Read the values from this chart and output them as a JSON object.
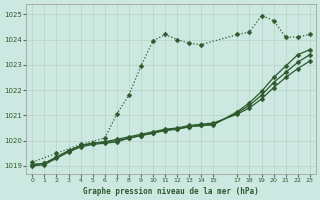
{
  "bg_color": "#cce8e0",
  "grid_color": "#b0d4cc",
  "line_color": "#2d5a2d",
  "title": "Graphe pression niveau de la mer (hPa)",
  "xlim": [
    -0.5,
    23.5
  ],
  "ylim": [
    1018.7,
    1025.4
  ],
  "yticks": [
    1019,
    1020,
    1021,
    1022,
    1023,
    1024,
    1025
  ],
  "xticks": [
    0,
    1,
    2,
    3,
    4,
    5,
    6,
    7,
    8,
    9,
    10,
    11,
    12,
    13,
    14,
    15,
    17,
    18,
    19,
    20,
    21,
    22,
    23
  ],
  "line_dotted": {
    "x": [
      0,
      2,
      4,
      6,
      7,
      8,
      9,
      10,
      11,
      12,
      13,
      14,
      17,
      18,
      19,
      20,
      21,
      22,
      23
    ],
    "y": [
      1019.15,
      1019.5,
      1019.85,
      1020.1,
      1021.05,
      1021.8,
      1022.95,
      1023.95,
      1024.2,
      1024.0,
      1023.85,
      1023.8,
      1024.2,
      1024.3,
      1024.95,
      1024.75,
      1024.1,
      1024.1,
      1024.2
    ]
  },
  "line_solid1": {
    "x": [
      0,
      1,
      2,
      3,
      4,
      5,
      6,
      7,
      8,
      9,
      10,
      11,
      12,
      13,
      14,
      15,
      17,
      18,
      19,
      20,
      21,
      22,
      23
    ],
    "y": [
      1019.05,
      1019.1,
      1019.35,
      1019.6,
      1019.8,
      1019.9,
      1019.95,
      1020.05,
      1020.15,
      1020.25,
      1020.35,
      1020.45,
      1020.5,
      1020.6,
      1020.65,
      1020.7,
      1021.05,
      1021.3,
      1021.65,
      1022.1,
      1022.5,
      1022.85,
      1023.15
    ]
  },
  "line_solid2": {
    "x": [
      0,
      1,
      2,
      3,
      4,
      5,
      6,
      7,
      8,
      9,
      10,
      11,
      12,
      13,
      14,
      15,
      17,
      18,
      19,
      20,
      21,
      22,
      23
    ],
    "y": [
      1019.0,
      1019.05,
      1019.3,
      1019.55,
      1019.75,
      1019.85,
      1019.9,
      1019.95,
      1020.1,
      1020.2,
      1020.3,
      1020.4,
      1020.45,
      1020.55,
      1020.6,
      1020.65,
      1021.1,
      1021.4,
      1021.8,
      1022.3,
      1022.7,
      1023.1,
      1023.4
    ]
  },
  "line_solid3": {
    "x": [
      0,
      1,
      2,
      3,
      4,
      5,
      6,
      7,
      8,
      9,
      10,
      11,
      12,
      13,
      14,
      15,
      17,
      18,
      19,
      20,
      21,
      22,
      23
    ],
    "y": [
      1019.05,
      1019.1,
      1019.35,
      1019.6,
      1019.8,
      1019.9,
      1019.95,
      1020.0,
      1020.1,
      1020.2,
      1020.3,
      1020.42,
      1020.47,
      1020.55,
      1020.6,
      1020.62,
      1021.15,
      1021.5,
      1021.95,
      1022.5,
      1022.95,
      1023.4,
      1023.6
    ]
  }
}
